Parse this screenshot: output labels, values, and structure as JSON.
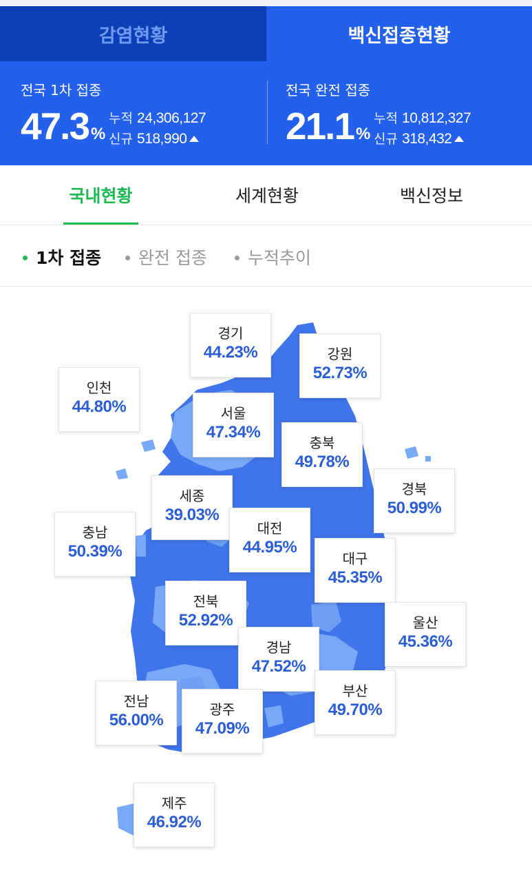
{
  "tabs": {
    "cases": "감염현황",
    "vaccine": "백신접종현황"
  },
  "stats": {
    "first": {
      "label": "전국 1차 접종",
      "percent": "47.3",
      "unit": "%",
      "cumulative_label": "누적",
      "cumulative": "24,306,127",
      "new_label": "신규",
      "new": "518,990"
    },
    "full": {
      "label": "전국 완전 접종",
      "percent": "21.1",
      "unit": "%",
      "cumulative_label": "누적",
      "cumulative": "10,812,327",
      "new_label": "신규",
      "new": "318,432"
    }
  },
  "subtabs": {
    "domestic": "국내현황",
    "world": "세계현황",
    "info": "백신정보"
  },
  "filters": {
    "first": "1차 접종",
    "full": "완전 접종",
    "trend": "누적추이"
  },
  "regions": [
    {
      "name": "경기",
      "value": "44.23%"
    },
    {
      "name": "강원",
      "value": "52.73%"
    },
    {
      "name": "인천",
      "value": "44.80%"
    },
    {
      "name": "서울",
      "value": "47.34%"
    },
    {
      "name": "충북",
      "value": "49.78%"
    },
    {
      "name": "경북",
      "value": "50.99%"
    },
    {
      "name": "세종",
      "value": "39.03%"
    },
    {
      "name": "대전",
      "value": "44.95%"
    },
    {
      "name": "충남",
      "value": "50.39%"
    },
    {
      "name": "대구",
      "value": "45.35%"
    },
    {
      "name": "전북",
      "value": "52.92%"
    },
    {
      "name": "울산",
      "value": "45.36%"
    },
    {
      "name": "경남",
      "value": "47.52%"
    },
    {
      "name": "부산",
      "value": "49.70%"
    },
    {
      "name": "전남",
      "value": "56.00%"
    },
    {
      "name": "광주",
      "value": "47.09%"
    },
    {
      "name": "제주",
      "value": "46.92%"
    }
  ],
  "colors": {
    "primary": "#2360eb",
    "inactive_tab": "#0c3fb6",
    "accent_green": "#1db954",
    "map_dark": "#3f74ea",
    "map_light": "#78a9f6"
  }
}
